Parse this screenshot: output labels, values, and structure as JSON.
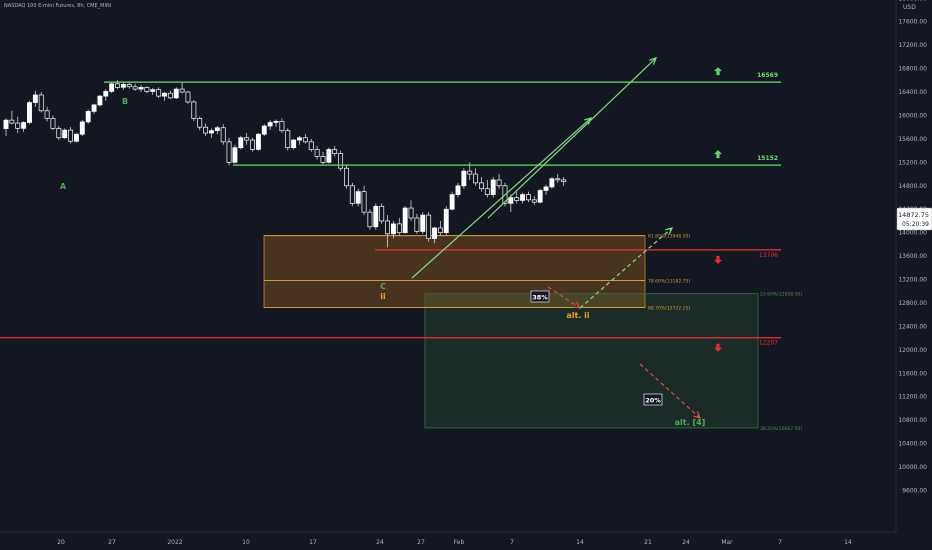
{
  "header": {
    "symbol_line": "NASDAQ 100 E-mini Futures, 8h, CME_MINI"
  },
  "axis": {
    "currency": "USD"
  },
  "chart_data": {
    "type": "candlestick",
    "y_ticks": [
      9600,
      10000,
      10400,
      10800,
      11200,
      11600,
      12000,
      12400,
      12800,
      13200,
      13600,
      14000,
      14400,
      14800,
      15200,
      15600,
      16000,
      16400,
      16800,
      17200,
      17600,
      18000,
      18400
    ],
    "x_ticks": [
      "20",
      "27",
      "2022",
      "10",
      "17",
      "24",
      "27",
      "Feb",
      "7",
      "14",
      "21",
      "24",
      "Mar",
      "7",
      "14"
    ],
    "price_badge": {
      "price": "14872.75",
      "countdown": "05:20:39"
    },
    "resistance_levels": [
      {
        "label": "16569",
        "value": 16569,
        "arrow": "up"
      },
      {
        "label": "15152",
        "value": 15152,
        "arrow": "up"
      }
    ],
    "support_levels": [
      {
        "label": "13706",
        "value": 13706,
        "arrow": "down"
      },
      {
        "label": "12207",
        "value": 12207,
        "arrow": "down"
      }
    ],
    "fib_box_upper": [
      {
        "label": "61.80%(13948.50)",
        "value": 13948.5
      },
      {
        "label": "78.60%(13182.75)",
        "value": 13182.75
      },
      {
        "label": "88.70%(12722.25)",
        "value": 12722.25
      }
    ],
    "fib_box_lower": [
      {
        "label": "23.60%(12958.50)",
        "value": 12958.5
      },
      {
        "label": "38.20%(10667.50)",
        "value": 10667.5
      }
    ],
    "wave_labels": [
      {
        "text": "A",
        "color": "#4caf50"
      },
      {
        "text": "B",
        "color": "#4caf50"
      },
      {
        "text": "C",
        "color": "#4caf50"
      },
      {
        "text": "ii",
        "color": "#f0a020"
      },
      {
        "text": "alt. ii",
        "color": "#f0a020"
      },
      {
        "text": "alt. [4]",
        "color": "#4caf50"
      }
    ],
    "probabilities": [
      "38%",
      "20%"
    ],
    "candles": [
      [
        15775,
        15950,
        15650,
        15920
      ],
      [
        15920,
        16080,
        15850,
        15870
      ],
      [
        15870,
        15980,
        15700,
        15780
      ],
      [
        15780,
        15900,
        15720,
        15880
      ],
      [
        15880,
        16250,
        15850,
        16220
      ],
      [
        16220,
        16420,
        16150,
        16350
      ],
      [
        16350,
        16400,
        16050,
        16080
      ],
      [
        16080,
        16150,
        15900,
        15950
      ],
      [
        15950,
        16000,
        15750,
        15780
      ],
      [
        15780,
        15820,
        15580,
        15620
      ],
      [
        15620,
        15780,
        15600,
        15750
      ],
      [
        15750,
        15800,
        15520,
        15560
      ],
      [
        15560,
        15700,
        15540,
        15680
      ],
      [
        15680,
        15920,
        15650,
        15890
      ],
      [
        15890,
        16100,
        15860,
        16070
      ],
      [
        16070,
        16200,
        16020,
        16180
      ],
      [
        16180,
        16350,
        16150,
        16330
      ],
      [
        16330,
        16450,
        16250,
        16410
      ],
      [
        16410,
        16560,
        16380,
        16540
      ],
      [
        16540,
        16600,
        16450,
        16480
      ],
      [
        16480,
        16560,
        16440,
        16530
      ],
      [
        16530,
        16580,
        16460,
        16490
      ],
      [
        16490,
        16540,
        16420,
        16450
      ],
      [
        16450,
        16520,
        16400,
        16480
      ],
      [
        16480,
        16500,
        16380,
        16410
      ],
      [
        16410,
        16470,
        16350,
        16440
      ],
      [
        16440,
        16480,
        16300,
        16330
      ],
      [
        16330,
        16400,
        16250,
        16380
      ],
      [
        16380,
        16420,
        16280,
        16300
      ],
      [
        16300,
        16480,
        16280,
        16450
      ],
      [
        16450,
        16560,
        16380,
        16400
      ],
      [
        16400,
        16420,
        16200,
        16230
      ],
      [
        16230,
        16260,
        15900,
        15950
      ],
      [
        15950,
        15980,
        15750,
        15800
      ],
      [
        15800,
        15860,
        15650,
        15700
      ],
      [
        15700,
        15780,
        15620,
        15740
      ],
      [
        15740,
        15820,
        15680,
        15790
      ],
      [
        15790,
        15850,
        15500,
        15550
      ],
      [
        15550,
        15620,
        15150,
        15200
      ],
      [
        15200,
        15500,
        15180,
        15450
      ],
      [
        15450,
        15650,
        15420,
        15620
      ],
      [
        15620,
        15700,
        15500,
        15580
      ],
      [
        15580,
        15620,
        15380,
        15420
      ],
      [
        15420,
        15700,
        15400,
        15680
      ],
      [
        15680,
        15850,
        15650,
        15820
      ],
      [
        15820,
        15920,
        15750,
        15880
      ],
      [
        15880,
        15930,
        15800,
        15900
      ],
      [
        15900,
        15950,
        15700,
        15740
      ],
      [
        15740,
        15780,
        15400,
        15450
      ],
      [
        15450,
        15600,
        15420,
        15580
      ],
      [
        15580,
        15650,
        15500,
        15620
      ],
      [
        15620,
        15680,
        15520,
        15550
      ],
      [
        15550,
        15600,
        15380,
        15420
      ],
      [
        15420,
        15480,
        15250,
        15300
      ],
      [
        15300,
        15380,
        15150,
        15200
      ],
      [
        15200,
        15450,
        15180,
        15420
      ],
      [
        15420,
        15480,
        15300,
        15350
      ],
      [
        15350,
        15400,
        15050,
        15100
      ],
      [
        15100,
        15150,
        14750,
        14800
      ],
      [
        14800,
        14850,
        14450,
        14500
      ],
      [
        14500,
        14750,
        14450,
        14700
      ],
      [
        14700,
        14800,
        14300,
        14350
      ],
      [
        14350,
        14400,
        14050,
        14100
      ],
      [
        14100,
        14500,
        14050,
        14450
      ],
      [
        14450,
        14500,
        14150,
        14200
      ],
      [
        14200,
        14300,
        13750,
        13980
      ],
      [
        13980,
        14200,
        13900,
        14150
      ],
      [
        14150,
        14250,
        13950,
        14000
      ],
      [
        14000,
        14450,
        13980,
        14420
      ],
      [
        14420,
        14550,
        14200,
        14250
      ],
      [
        14250,
        14320,
        13980,
        14020
      ],
      [
        14020,
        14350,
        13980,
        14300
      ],
      [
        14300,
        14350,
        13850,
        13900
      ],
      [
        13900,
        14100,
        13820,
        14080
      ],
      [
        14080,
        14200,
        13950,
        14000
      ],
      [
        14000,
        14450,
        13950,
        14400
      ],
      [
        14400,
        14700,
        14380,
        14650
      ],
      [
        14650,
        14850,
        14600,
        14800
      ],
      [
        14800,
        15100,
        14750,
        15050
      ],
      [
        15050,
        15200,
        14900,
        15000
      ],
      [
        15000,
        15100,
        14800,
        14850
      ],
      [
        14850,
        14950,
        14700,
        14750
      ],
      [
        14750,
        14900,
        14600,
        14650
      ],
      [
        14650,
        14950,
        14600,
        14900
      ],
      [
        14900,
        15000,
        14750,
        14800
      ],
      [
        14800,
        14850,
        14450,
        14500
      ],
      [
        14500,
        14650,
        14350,
        14600
      ],
      [
        14600,
        14700,
        14500,
        14550
      ],
      [
        14550,
        14680,
        14500,
        14650
      ],
      [
        14650,
        14700,
        14520,
        14560
      ],
      [
        14560,
        14620,
        14480,
        14520
      ],
      [
        14520,
        14750,
        14500,
        14720
      ],
      [
        14720,
        14820,
        14650,
        14780
      ],
      [
        14780,
        14950,
        14750,
        14920
      ],
      [
        14920,
        15000,
        14850,
        14900
      ],
      [
        14900,
        14950,
        14800,
        14870
      ]
    ]
  }
}
